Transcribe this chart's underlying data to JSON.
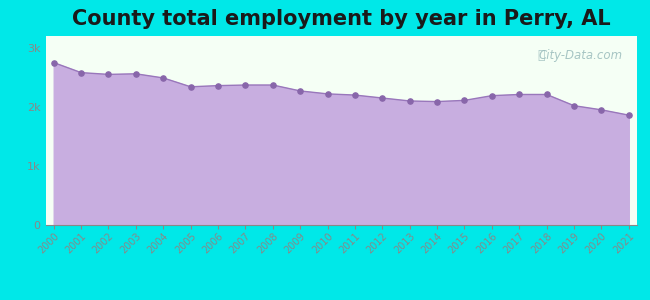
{
  "title": "County total employment by year in Perry, AL",
  "title_fontsize": 15,
  "title_fontweight": "bold",
  "background_color": "#00e8e8",
  "plot_bg_top": "#f5fff5",
  "plot_bg_bottom": "#f0fff0",
  "fill_color": "#c8aee0",
  "fill_alpha": 1.0,
  "line_color": "#9977bb",
  "line_width": 1.0,
  "marker_color": "#8866aa",
  "marker_size": 14,
  "years": [
    2000,
    2001,
    2002,
    2003,
    2004,
    2005,
    2006,
    2007,
    2008,
    2009,
    2010,
    2011,
    2012,
    2013,
    2014,
    2015,
    2016,
    2017,
    2018,
    2019,
    2020,
    2021
  ],
  "values": [
    2750,
    2580,
    2550,
    2560,
    2490,
    2340,
    2360,
    2370,
    2370,
    2270,
    2220,
    2200,
    2150,
    2100,
    2090,
    2110,
    2190,
    2210,
    2210,
    2020,
    1950,
    1860
  ],
  "ylim": [
    0,
    3200
  ],
  "yticks": [
    0,
    1000,
    2000,
    3000
  ],
  "ytick_labels": [
    "0",
    "1k",
    "2k",
    "3k"
  ],
  "watermark": "City-Data.com",
  "watermark_color": "#99bbbb",
  "tick_color": "#888888",
  "label_color": "#888888"
}
